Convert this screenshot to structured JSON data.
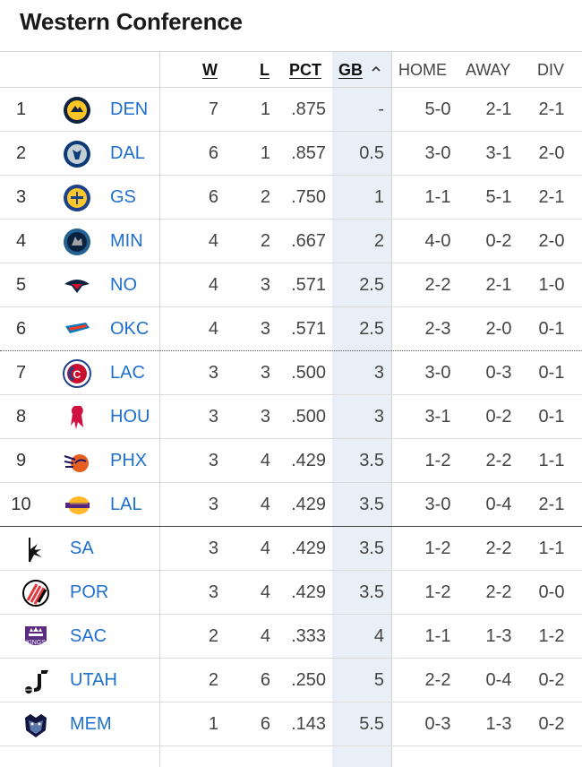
{
  "title": "Western Conference",
  "headers": {
    "w": "W",
    "l": "L",
    "pct": "PCT",
    "gb": "GB",
    "home": "HOME",
    "away": "AWAY",
    "div": "DIV"
  },
  "colors": {
    "link": "#1f6fcc",
    "gb_highlight": "#e9eff6"
  },
  "rows": [
    {
      "rank": "1",
      "team": "DEN",
      "logo": "nuggets-logo-icon",
      "w": "7",
      "l": "1",
      "pct": ".875",
      "gb": "-",
      "home": "5-0",
      "away": "2-1",
      "div": "2-1"
    },
    {
      "rank": "2",
      "team": "DAL",
      "logo": "mavericks-logo-icon",
      "w": "6",
      "l": "1",
      "pct": ".857",
      "gb": "0.5",
      "home": "3-0",
      "away": "3-1",
      "div": "2-0"
    },
    {
      "rank": "3",
      "team": "GS",
      "logo": "warriors-logo-icon",
      "w": "6",
      "l": "2",
      "pct": ".750",
      "gb": "1",
      "home": "1-1",
      "away": "5-1",
      "div": "2-1"
    },
    {
      "rank": "4",
      "team": "MIN",
      "logo": "timberwolves-logo-icon",
      "w": "4",
      "l": "2",
      "pct": ".667",
      "gb": "2",
      "home": "4-0",
      "away": "0-2",
      "div": "2-0"
    },
    {
      "rank": "5",
      "team": "NO",
      "logo": "pelicans-logo-icon",
      "w": "4",
      "l": "3",
      "pct": ".571",
      "gb": "2.5",
      "home": "2-2",
      "away": "2-1",
      "div": "1-0"
    },
    {
      "rank": "6",
      "team": "OKC",
      "logo": "thunder-logo-icon",
      "w": "4",
      "l": "3",
      "pct": ".571",
      "gb": "2.5",
      "home": "2-3",
      "away": "2-0",
      "div": "0-1"
    },
    {
      "rank": "7",
      "team": "LAC",
      "logo": "clippers-logo-icon",
      "w": "3",
      "l": "3",
      "pct": ".500",
      "gb": "3",
      "home": "3-0",
      "away": "0-3",
      "div": "0-1"
    },
    {
      "rank": "8",
      "team": "HOU",
      "logo": "rockets-logo-icon",
      "w": "3",
      "l": "3",
      "pct": ".500",
      "gb": "3",
      "home": "3-1",
      "away": "0-2",
      "div": "0-1"
    },
    {
      "rank": "9",
      "team": "PHX",
      "logo": "suns-logo-icon",
      "w": "3",
      "l": "4",
      "pct": ".429",
      "gb": "3.5",
      "home": "1-2",
      "away": "2-2",
      "div": "1-1"
    },
    {
      "rank": "10",
      "team": "LAL",
      "logo": "lakers-logo-icon",
      "w": "3",
      "l": "4",
      "pct": ".429",
      "gb": "3.5",
      "home": "3-0",
      "away": "0-4",
      "div": "2-1"
    },
    {
      "rank": "",
      "team": "SA",
      "logo": "spurs-logo-icon",
      "w": "3",
      "l": "4",
      "pct": ".429",
      "gb": "3.5",
      "home": "1-2",
      "away": "2-2",
      "div": "1-1"
    },
    {
      "rank": "",
      "team": "POR",
      "logo": "blazers-logo-icon",
      "w": "3",
      "l": "4",
      "pct": ".429",
      "gb": "3.5",
      "home": "1-2",
      "away": "2-2",
      "div": "0-0"
    },
    {
      "rank": "",
      "team": "SAC",
      "logo": "kings-logo-icon",
      "w": "2",
      "l": "4",
      "pct": ".333",
      "gb": "4",
      "home": "1-1",
      "away": "1-3",
      "div": "1-2"
    },
    {
      "rank": "",
      "team": "UTAH",
      "logo": "jazz-logo-icon",
      "w": "2",
      "l": "6",
      "pct": ".250",
      "gb": "5",
      "home": "2-2",
      "away": "0-4",
      "div": "0-2"
    },
    {
      "rank": "",
      "team": "MEM",
      "logo": "grizzlies-logo-icon",
      "w": "1",
      "l": "6",
      "pct": ".143",
      "gb": "5.5",
      "home": "0-3",
      "away": "1-3",
      "div": "0-2"
    }
  ]
}
